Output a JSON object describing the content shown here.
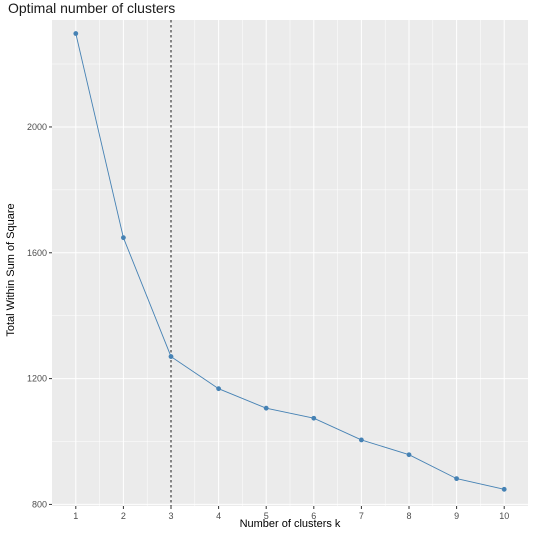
{
  "chart_data": {
    "type": "line",
    "title": "Optimal number of clusters",
    "xlabel": "Number of clusters k",
    "ylabel": "Total Within Sum of Square",
    "x": [
      1,
      2,
      3,
      4,
      5,
      6,
      7,
      8,
      9,
      10
    ],
    "series": [
      {
        "values": [
          2297,
          1648,
          1270,
          1168,
          1106,
          1074,
          1005,
          958,
          882,
          848
        ]
      }
    ],
    "xlim": [
      0.5,
      10.5
    ],
    "ylim": [
      795,
      2340
    ],
    "xticks": [
      1,
      2,
      3,
      4,
      5,
      6,
      7,
      8,
      9,
      10
    ],
    "yticks": [
      800,
      1200,
      1600,
      2000
    ],
    "vline": {
      "x": 3,
      "style": "dashed"
    },
    "grid": true,
    "legend": "none",
    "colors": {
      "panel": "#ebebeb",
      "grid": "#ffffff",
      "line": "#4682b4",
      "point": "#4682b4",
      "vline": "#595959"
    }
  }
}
